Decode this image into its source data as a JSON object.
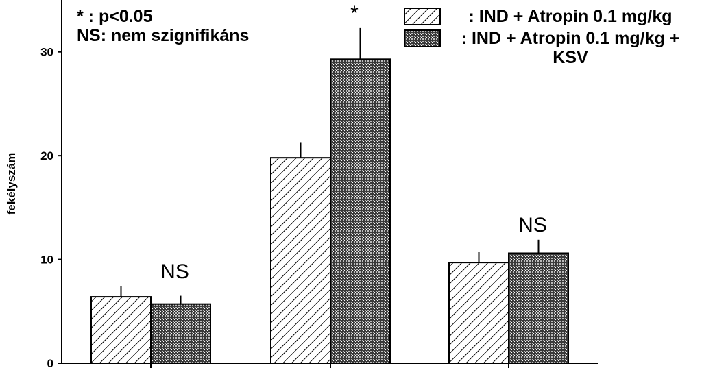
{
  "chart_data": {
    "type": "bar",
    "y_label": "fekélyszám",
    "categories": [
      null,
      null,
      null
    ],
    "series": [
      {
        "name": ": IND + Atropin 0.1 mg/kg",
        "color": "#000000",
        "pattern": "hatch",
        "values": [
          6.4,
          19.8,
          9.7
        ],
        "errors": [
          1.0,
          1.5,
          1.0
        ]
      },
      {
        "name": ": IND + Atropin 0.1 mg/kg + KSV",
        "color": "#000000",
        "pattern": "crosshatch",
        "values": [
          5.7,
          29.3,
          10.6
        ],
        "errors": [
          0.8,
          3.0,
          1.3
        ]
      }
    ],
    "annotations": [
      "NS",
      "*",
      "NS"
    ],
    "notes": [
      "*  : p<0.05",
      "NS: nem szignifikáns"
    ],
    "ylim": [
      0,
      35
    ],
    "yticks": [
      0,
      10,
      20,
      30
    ],
    "grid": false
  }
}
